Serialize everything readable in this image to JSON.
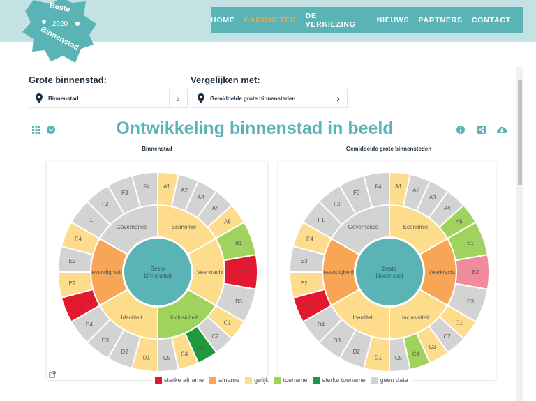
{
  "logo": {
    "text_top": "Beste",
    "year": "2020",
    "text_bottom": "Binnenstad"
  },
  "nav": {
    "items": [
      {
        "label": "HOME"
      },
      {
        "label": "BAROMETER",
        "active": true
      },
      {
        "label": "DE VERKIEZING"
      },
      {
        "label": "NIEUWS"
      },
      {
        "label": "PARTNERS"
      },
      {
        "label": "CONTACT"
      }
    ]
  },
  "selectors": {
    "primary": {
      "label": "Grote binnenstad:",
      "value": "Binnenstad"
    },
    "compare": {
      "label": "Vergelijken met:",
      "value": "Gemiddelde grote binnensteden"
    }
  },
  "page_title": "Ontwikkeling binnenstad in beeld",
  "toolbar_icons": [
    "grid-icon",
    "chevron-down-circle-icon",
    "info-icon",
    "share-icon",
    "cloud-download-icon"
  ],
  "colors": {
    "sterke_afname": "#e2192f",
    "afname": "#f8a556",
    "gelijk": "#fddd8c",
    "toename": "#9fd35e",
    "sterke_toename": "#1e9a3d",
    "geen_data": "#d3d3d3",
    "light_red": "#f08b9b",
    "center": "#5ab3b5",
    "accent": "#5ab3b5",
    "nav_active": "#f0a640"
  },
  "legend": [
    {
      "key": "sterke_afname",
      "label": "sterke afname"
    },
    {
      "key": "afname",
      "label": "afname"
    },
    {
      "key": "gelijk",
      "label": "gelijk"
    },
    {
      "key": "toename",
      "label": "toename"
    },
    {
      "key": "sterke_toename",
      "label": "sterke toename"
    },
    {
      "key": "geen_data",
      "label": "geen data"
    }
  ],
  "chart_data": [
    {
      "type": "sunburst",
      "title": "Binnenstad",
      "center": "Beste binnenstad",
      "categories": [
        {
          "name": "Economie",
          "status": "gelijk",
          "items": [
            [
              "A1",
              "gelijk"
            ],
            [
              "A2",
              "geen_data"
            ],
            [
              "A3",
              "geen_data"
            ],
            [
              "A4",
              "geen_data"
            ],
            [
              "A5",
              "gelijk"
            ]
          ]
        },
        {
          "name": "Veerkracht",
          "status": "gelijk",
          "items": [
            [
              "B1",
              "toename"
            ],
            [
              "B2",
              "sterke_afname"
            ],
            [
              "B3",
              "geen_data"
            ]
          ]
        },
        {
          "name": "Inclusiviteit",
          "status": "toename",
          "items": [
            [
              "C1",
              "gelijk"
            ],
            [
              "C2",
              "geen_data"
            ],
            [
              "C3",
              "sterke_toename"
            ],
            [
              "C4",
              "gelijk"
            ],
            [
              "C5",
              "geen_data"
            ]
          ]
        },
        {
          "name": "Identiteit",
          "status": "gelijk",
          "items": [
            [
              "D1",
              "gelijk"
            ],
            [
              "D2",
              "geen_data"
            ],
            [
              "D3",
              "geen_data"
            ],
            [
              "D4",
              "geen_data"
            ]
          ]
        },
        {
          "name": "Levendigheid",
          "status": "afname",
          "items": [
            [
              "E1",
              "sterke_afname"
            ],
            [
              "E2",
              "gelijk"
            ],
            [
              "E3",
              "geen_data"
            ],
            [
              "E4",
              "gelijk"
            ]
          ]
        },
        {
          "name": "Governance",
          "status": "geen_data",
          "items": [
            [
              "F1",
              "geen_data"
            ],
            [
              "F2",
              "geen_data"
            ],
            [
              "F3",
              "geen_data"
            ],
            [
              "F4",
              "geen_data"
            ]
          ]
        }
      ]
    },
    {
      "type": "sunburst",
      "title": "Gemiddelde grote binnensteden",
      "center": "Beste binnenstad",
      "categories": [
        {
          "name": "Economie",
          "status": "gelijk",
          "items": [
            [
              "A1",
              "gelijk"
            ],
            [
              "A2",
              "geen_data"
            ],
            [
              "A3",
              "geen_data"
            ],
            [
              "A4",
              "geen_data"
            ],
            [
              "A5",
              "toename"
            ]
          ]
        },
        {
          "name": "Veerkracht",
          "status": "afname",
          "items": [
            [
              "B1",
              "toename"
            ],
            [
              "B2",
              "light_red"
            ],
            [
              "B3",
              "geen_data"
            ]
          ]
        },
        {
          "name": "Inclusiviteit",
          "status": "gelijk",
          "items": [
            [
              "C1",
              "gelijk"
            ],
            [
              "C2",
              "geen_data"
            ],
            [
              "C3",
              "gelijk"
            ],
            [
              "C4",
              "toename"
            ],
            [
              "C5",
              "geen_data"
            ]
          ]
        },
        {
          "name": "Identiteit",
          "status": "gelijk",
          "items": [
            [
              "D1",
              "gelijk"
            ],
            [
              "D2",
              "geen_data"
            ],
            [
              "D3",
              "geen_data"
            ],
            [
              "D4",
              "geen_data"
            ]
          ]
        },
        {
          "name": "Levendigheid",
          "status": "afname",
          "items": [
            [
              "E1",
              "sterke_afname"
            ],
            [
              "E2",
              "gelijk"
            ],
            [
              "E3",
              "geen_data"
            ],
            [
              "E4",
              "gelijk"
            ]
          ]
        },
        {
          "name": "Governance",
          "status": "geen_data",
          "items": [
            [
              "F1",
              "geen_data"
            ],
            [
              "F2",
              "geen_data"
            ],
            [
              "F3",
              "geen_data"
            ],
            [
              "F4",
              "geen_data"
            ]
          ]
        }
      ]
    }
  ]
}
